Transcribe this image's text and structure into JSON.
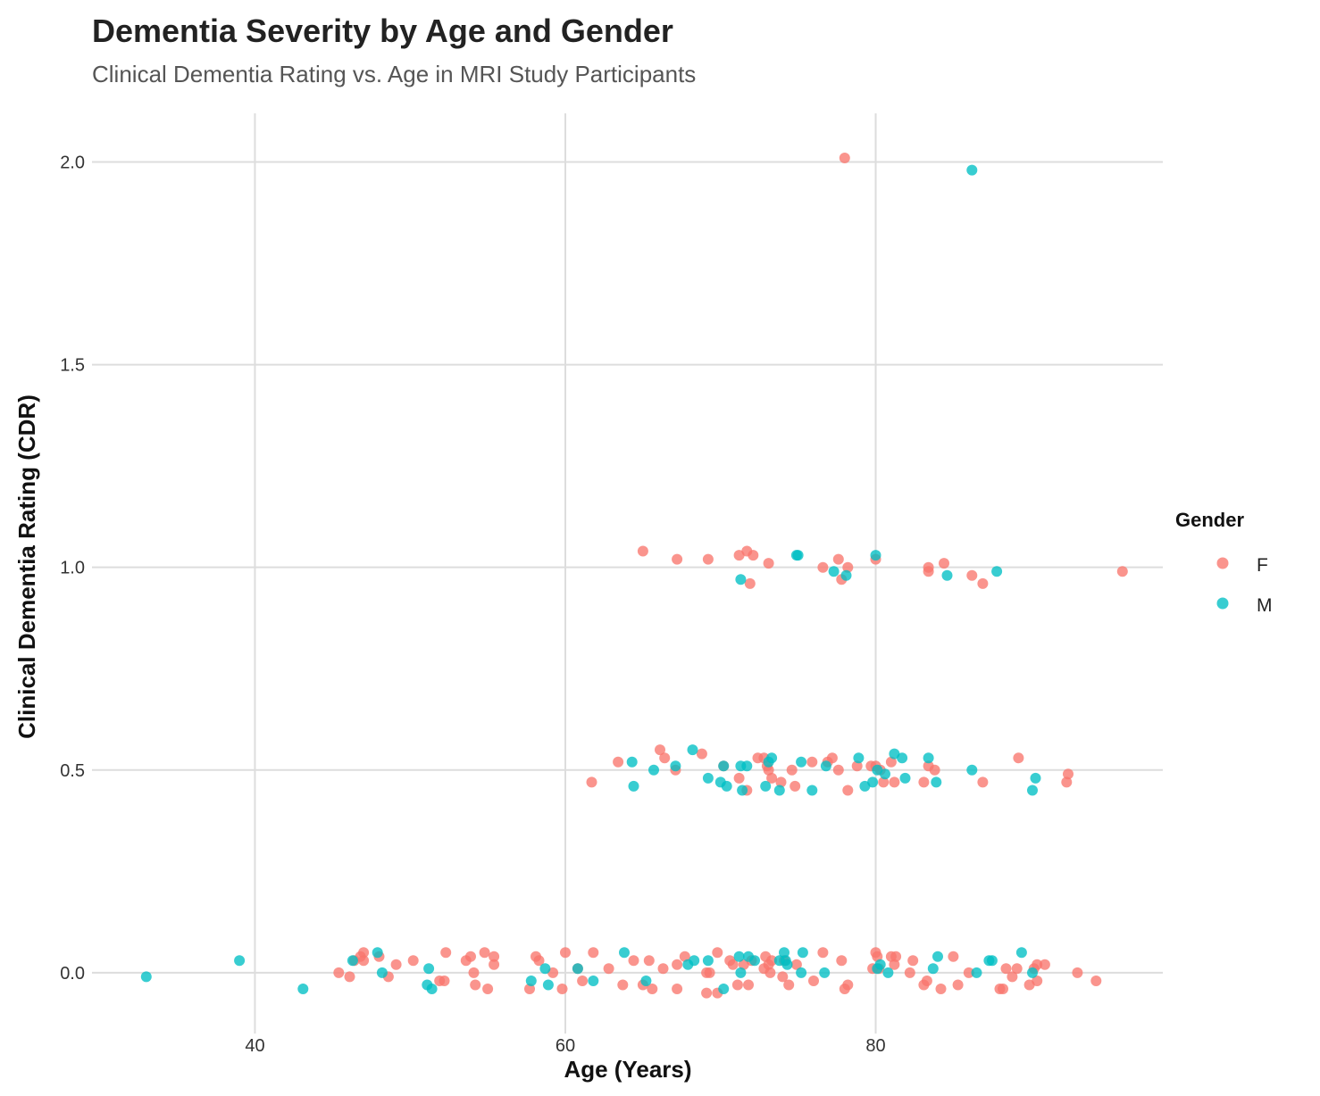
{
  "chart_data": {
    "type": "scatter",
    "title": "Dementia Severity by Age and Gender",
    "subtitle": "Clinical Dementia Rating vs. Age in MRI Study Participants",
    "xlabel": "Age (Years)",
    "ylabel": "Clinical Dementia Rating (CDR)",
    "xlim": [
      29.5,
      98.5
    ],
    "ylim": [
      -0.15,
      2.12
    ],
    "x_ticks": [
      40,
      60,
      80
    ],
    "y_ticks": [
      0.0,
      0.5,
      1.0,
      1.5,
      2.0
    ],
    "x_tick_labels": [
      "40",
      "60",
      "80"
    ],
    "y_tick_labels": [
      "0.0",
      "0.5",
      "1.0",
      "1.5",
      "2.0"
    ],
    "grid": true,
    "legend": {
      "title": "Gender",
      "position": "right"
    },
    "series": [
      {
        "name": "F",
        "color": "#F8766D",
        "points": [
          [
            78.0,
            2.01
          ],
          [
            65.0,
            1.04
          ],
          [
            67.2,
            1.02
          ],
          [
            69.2,
            1.02
          ],
          [
            71.2,
            1.03
          ],
          [
            71.7,
            1.04
          ],
          [
            72.1,
            1.03
          ],
          [
            73.1,
            1.01
          ],
          [
            71.9,
            0.96
          ],
          [
            76.6,
            1.0
          ],
          [
            77.6,
            1.02
          ],
          [
            77.8,
            0.97
          ],
          [
            78.2,
            1.0
          ],
          [
            80.0,
            1.02
          ],
          [
            83.4,
            0.99
          ],
          [
            83.4,
            1.0
          ],
          [
            84.4,
            1.01
          ],
          [
            86.2,
            0.98
          ],
          [
            86.9,
            0.96
          ],
          [
            95.9,
            0.99
          ],
          [
            61.7,
            0.47
          ],
          [
            63.4,
            0.52
          ],
          [
            66.1,
            0.55
          ],
          [
            66.4,
            0.53
          ],
          [
            67.1,
            0.5
          ],
          [
            68.8,
            0.54
          ],
          [
            70.2,
            0.51
          ],
          [
            71.2,
            0.48
          ],
          [
            71.7,
            0.45
          ],
          [
            72.4,
            0.53
          ],
          [
            72.8,
            0.53
          ],
          [
            73.0,
            0.51
          ],
          [
            73.1,
            0.5
          ],
          [
            73.3,
            0.48
          ],
          [
            73.9,
            0.47
          ],
          [
            74.6,
            0.5
          ],
          [
            74.8,
            0.46
          ],
          [
            75.9,
            0.52
          ],
          [
            76.9,
            0.52
          ],
          [
            77.2,
            0.53
          ],
          [
            77.6,
            0.5
          ],
          [
            78.2,
            0.45
          ],
          [
            78.8,
            0.51
          ],
          [
            79.7,
            0.51
          ],
          [
            80.0,
            0.51
          ],
          [
            80.3,
            0.5
          ],
          [
            80.5,
            0.47
          ],
          [
            81.0,
            0.52
          ],
          [
            81.2,
            0.47
          ],
          [
            83.1,
            0.47
          ],
          [
            83.4,
            0.51
          ],
          [
            83.8,
            0.5
          ],
          [
            86.9,
            0.47
          ],
          [
            89.2,
            0.53
          ],
          [
            92.3,
            0.47
          ],
          [
            92.4,
            0.49
          ],
          [
            45.4,
            0.0
          ],
          [
            46.1,
            -0.01
          ],
          [
            46.4,
            0.03
          ],
          [
            46.8,
            0.04
          ],
          [
            47.0,
            0.05
          ],
          [
            47.0,
            0.03
          ],
          [
            48.0,
            0.04
          ],
          [
            48.6,
            -0.01
          ],
          [
            49.1,
            0.02
          ],
          [
            50.2,
            0.03
          ],
          [
            51.9,
            -0.02
          ],
          [
            52.3,
            0.05
          ],
          [
            52.2,
            -0.02
          ],
          [
            53.6,
            0.03
          ],
          [
            53.9,
            0.04
          ],
          [
            54.1,
            0.0
          ],
          [
            54.2,
            -0.03
          ],
          [
            54.8,
            0.05
          ],
          [
            55.0,
            -0.04
          ],
          [
            55.4,
            0.04
          ],
          [
            55.4,
            0.02
          ],
          [
            57.7,
            -0.04
          ],
          [
            58.1,
            0.04
          ],
          [
            58.3,
            0.03
          ],
          [
            59.2,
            0.0
          ],
          [
            59.8,
            -0.04
          ],
          [
            60.0,
            0.05
          ],
          [
            60.8,
            0.01
          ],
          [
            61.1,
            -0.02
          ],
          [
            61.8,
            0.05
          ],
          [
            62.8,
            0.01
          ],
          [
            63.7,
            -0.03
          ],
          [
            64.4,
            0.03
          ],
          [
            65.0,
            -0.03
          ],
          [
            65.4,
            0.03
          ],
          [
            65.6,
            -0.04
          ],
          [
            66.3,
            0.01
          ],
          [
            67.2,
            0.02
          ],
          [
            67.2,
            -0.04
          ],
          [
            67.7,
            0.04
          ],
          [
            69.1,
            -0.05
          ],
          [
            69.1,
            0.0
          ],
          [
            69.3,
            0.0
          ],
          [
            69.8,
            0.05
          ],
          [
            69.8,
            -0.05
          ],
          [
            70.6,
            0.03
          ],
          [
            70.8,
            0.02
          ],
          [
            71.1,
            -0.03
          ],
          [
            71.5,
            0.02
          ],
          [
            71.8,
            -0.03
          ],
          [
            72.0,
            0.03
          ],
          [
            72.8,
            0.01
          ],
          [
            72.9,
            0.04
          ],
          [
            73.1,
            0.02
          ],
          [
            73.2,
            0.0
          ],
          [
            73.3,
            0.03
          ],
          [
            74.0,
            -0.01
          ],
          [
            74.1,
            0.03
          ],
          [
            74.4,
            -0.03
          ],
          [
            74.9,
            0.02
          ],
          [
            76.0,
            -0.02
          ],
          [
            76.6,
            0.05
          ],
          [
            77.8,
            0.03
          ],
          [
            78.0,
            -0.04
          ],
          [
            78.2,
            -0.03
          ],
          [
            79.8,
            0.01
          ],
          [
            80.0,
            0.05
          ],
          [
            80.1,
            0.04
          ],
          [
            80.2,
            0.01
          ],
          [
            81.0,
            0.04
          ],
          [
            81.2,
            0.02
          ],
          [
            81.3,
            0.04
          ],
          [
            82.2,
            0.0
          ],
          [
            82.4,
            0.03
          ],
          [
            83.1,
            -0.03
          ],
          [
            83.3,
            -0.02
          ],
          [
            84.2,
            -0.04
          ],
          [
            85.0,
            0.04
          ],
          [
            85.3,
            -0.03
          ],
          [
            86.0,
            0.0
          ],
          [
            88.0,
            -0.04
          ],
          [
            88.2,
            -0.04
          ],
          [
            88.4,
            0.01
          ],
          [
            88.8,
            -0.01
          ],
          [
            89.1,
            0.01
          ],
          [
            89.9,
            -0.03
          ],
          [
            90.2,
            0.01
          ],
          [
            90.4,
            0.02
          ],
          [
            90.4,
            -0.02
          ],
          [
            90.9,
            0.02
          ],
          [
            93.0,
            0.0
          ],
          [
            94.2,
            -0.02
          ]
        ]
      },
      {
        "name": "M",
        "color": "#00BFC4",
        "points": [
          [
            86.2,
            1.98
          ],
          [
            71.3,
            0.97
          ],
          [
            74.9,
            1.03
          ],
          [
            75.0,
            1.03
          ],
          [
            77.3,
            0.99
          ],
          [
            78.1,
            0.98
          ],
          [
            80.0,
            1.03
          ],
          [
            84.6,
            0.98
          ],
          [
            87.8,
            0.99
          ],
          [
            64.3,
            0.52
          ],
          [
            64.4,
            0.46
          ],
          [
            65.7,
            0.5
          ],
          [
            67.1,
            0.51
          ],
          [
            68.2,
            0.55
          ],
          [
            69.2,
            0.48
          ],
          [
            70.0,
            0.47
          ],
          [
            70.2,
            0.51
          ],
          [
            70.4,
            0.46
          ],
          [
            71.3,
            0.51
          ],
          [
            71.4,
            0.45
          ],
          [
            71.7,
            0.51
          ],
          [
            72.9,
            0.46
          ],
          [
            73.1,
            0.52
          ],
          [
            73.3,
            0.53
          ],
          [
            73.8,
            0.45
          ],
          [
            75.2,
            0.52
          ],
          [
            75.9,
            0.45
          ],
          [
            76.8,
            0.51
          ],
          [
            78.9,
            0.53
          ],
          [
            79.3,
            0.46
          ],
          [
            79.8,
            0.47
          ],
          [
            80.1,
            0.5
          ],
          [
            80.6,
            0.49
          ],
          [
            81.2,
            0.54
          ],
          [
            81.7,
            0.53
          ],
          [
            81.9,
            0.48
          ],
          [
            83.4,
            0.53
          ],
          [
            83.9,
            0.47
          ],
          [
            86.2,
            0.5
          ],
          [
            90.1,
            0.45
          ],
          [
            90.3,
            0.48
          ],
          [
            33.0,
            -0.01
          ],
          [
            39.0,
            0.03
          ],
          [
            43.1,
            -0.04
          ],
          [
            46.3,
            0.03
          ],
          [
            47.9,
            0.05
          ],
          [
            48.2,
            0.0
          ],
          [
            51.1,
            -0.03
          ],
          [
            51.2,
            0.01
          ],
          [
            51.4,
            -0.04
          ],
          [
            57.8,
            -0.02
          ],
          [
            58.7,
            0.01
          ],
          [
            58.9,
            -0.03
          ],
          [
            60.8,
            0.01
          ],
          [
            61.8,
            -0.02
          ],
          [
            63.8,
            0.05
          ],
          [
            65.2,
            -0.02
          ],
          [
            67.9,
            0.02
          ],
          [
            68.3,
            0.03
          ],
          [
            69.2,
            0.03
          ],
          [
            70.2,
            -0.04
          ],
          [
            71.2,
            0.04
          ],
          [
            71.3,
            0.0
          ],
          [
            71.8,
            0.04
          ],
          [
            72.2,
            0.03
          ],
          [
            73.8,
            0.03
          ],
          [
            74.1,
            0.05
          ],
          [
            74.2,
            0.03
          ],
          [
            74.3,
            0.02
          ],
          [
            75.2,
            0.0
          ],
          [
            75.3,
            0.05
          ],
          [
            76.7,
            0.0
          ],
          [
            80.1,
            0.01
          ],
          [
            80.3,
            0.02
          ],
          [
            80.8,
            0.0
          ],
          [
            83.7,
            0.01
          ],
          [
            84.0,
            0.04
          ],
          [
            86.5,
            0.0
          ],
          [
            87.3,
            0.03
          ],
          [
            87.5,
            0.03
          ],
          [
            89.4,
            0.05
          ],
          [
            90.1,
            0.0
          ]
        ]
      }
    ]
  }
}
